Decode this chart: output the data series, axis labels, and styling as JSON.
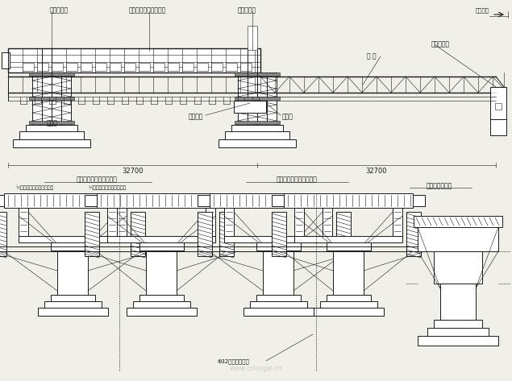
{
  "bg_color": "#f0efe8",
  "line_color": "#1a1a1a",
  "labels": {
    "hou_fu": "后辅助支座",
    "wai_mo": "外模、底模及端模系统",
    "zhong_fu": "中辅助支座",
    "dao_liang": "导 梁",
    "qian_fu": "前辅助支座",
    "zhu_jia": "主框架",
    "yi_wei": "移位小车",
    "zhu_zhi": "主支座",
    "shijian": "施工方向",
    "dim1": "32700",
    "dim2": "32700",
    "section_title1": "主支座及后辅助支座断面",
    "section_sub1a": "½移动模架浇筑混凝土状态",
    "section_sub1b": "½移动模架开模后过孔状态",
    "section_title2": "主支座及中辅助支座断面",
    "section_title3": "前辅助支座断面",
    "phi32": "Φ32精扎螺纹销筒"
  },
  "watermark": "www.cnonge.cn"
}
